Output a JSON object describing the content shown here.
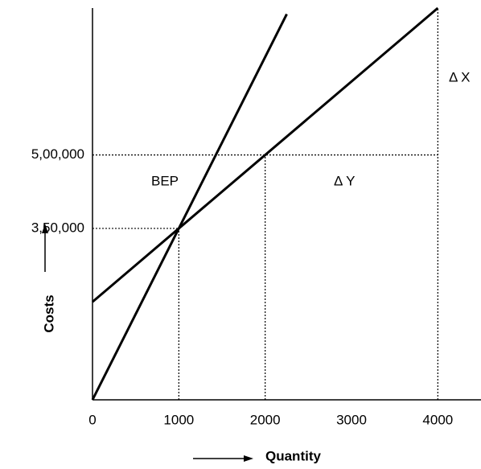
{
  "chart_data": {
    "type": "line",
    "x_label": "Quantity",
    "y_label": "Costs",
    "xlim": [
      0,
      4500
    ],
    "ylim": [
      0,
      800000
    ],
    "xticks": [
      0,
      1000,
      2000,
      3000,
      4000
    ],
    "yticks": [
      {
        "value": 350000,
        "label": "3,50,000"
      },
      {
        "value": 500000,
        "label": "5,00,000"
      }
    ],
    "series": [
      {
        "color": "#000000",
        "x": [
          0,
          2250
        ],
        "values": [
          0,
          787500
        ]
      },
      {
        "color": "#000000",
        "x": [
          0,
          4000
        ],
        "values": [
          200000,
          800000
        ]
      }
    ],
    "hlines": [
      {
        "y": 350000,
        "x": [
          0,
          1000
        ]
      },
      {
        "y": 500000,
        "x": [
          0,
          4000
        ]
      }
    ],
    "vlines": [
      {
        "x": 1000,
        "y": [
          0,
          350000
        ]
      },
      {
        "x": 2000,
        "y": [
          0,
          500000
        ]
      },
      {
        "x": 4000,
        "y": [
          0,
          800000
        ]
      }
    ],
    "annotations": [
      "BEP",
      "Δ Y",
      "Δ X"
    ]
  }
}
